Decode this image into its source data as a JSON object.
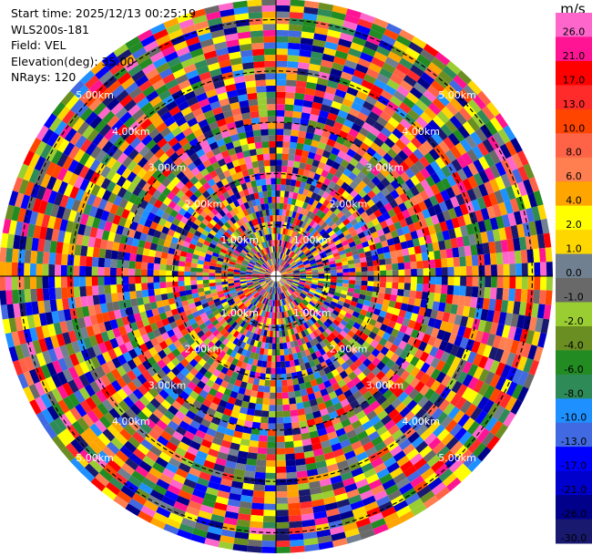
{
  "info": {
    "start_time": "Start time: 2025/12/13 00:25:19",
    "station": "WLS200s-181",
    "field": "Field: VEL",
    "elevation": "Elevation(deg): 35.00",
    "nrays": "NRays: 120"
  },
  "chart_data": {
    "type": "heatmap",
    "projection": "polar-ppi",
    "title": "",
    "n_rays": 120,
    "range_rings_km": [
      1,
      2,
      3,
      4,
      5
    ],
    "ring_labels": [
      "1.00km",
      "2.00km",
      "3.00km",
      "4.00km",
      "5.00km"
    ],
    "max_range_km": 5.4,
    "colorbar": {
      "unit": "m/s",
      "ticks": [
        "26.0",
        "21.0",
        "17.0",
        "13.0",
        "10.0",
        "8.0",
        "6.0",
        "4.0",
        "2.0",
        "1.0",
        "0.0",
        "-1.0",
        "-2.0",
        "-4.0",
        "-6.0",
        "-8.0",
        "-10.0",
        "-13.0",
        "-17.0",
        "-21.0",
        "-26.0",
        "-30.0"
      ],
      "colors": [
        "#ff66cc",
        "#ff1493",
        "#ff0000",
        "#ff2a2a",
        "#ff4500",
        "#ff6347",
        "#ff7f50",
        "#ffa500",
        "#ffff00",
        "#ffd700",
        "#708090",
        "#696969",
        "#9acd32",
        "#6b8e23",
        "#228b22",
        "#2e8b57",
        "#1e90ff",
        "#4169e1",
        "#0000ff",
        "#0000cd",
        "#00008b",
        "#191970"
      ]
    },
    "colormap_order": "26.0 (top) to -30.0 (bottom)"
  }
}
